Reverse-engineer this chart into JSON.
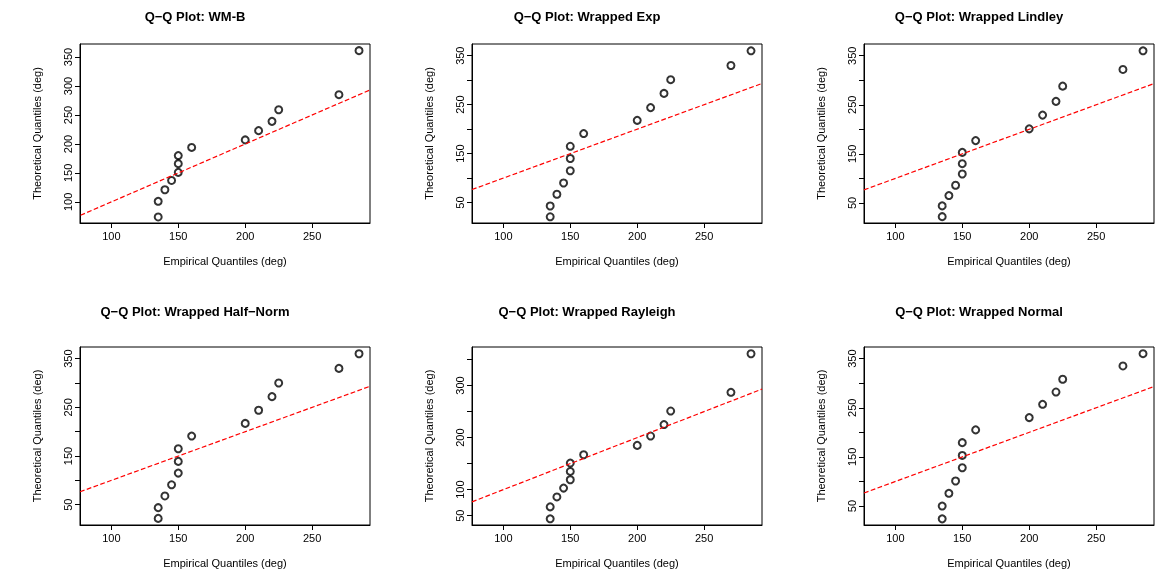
{
  "chart_data": [
    {
      "type": "scatter",
      "title": "Q−Q Plot: WM-B",
      "xlabel": "Empirical Quantiles (deg)",
      "ylabel": "Theoretical Quantiles (deg)",
      "marker": "circle",
      "grid": false,
      "xlim": [
        76.6,
        293.2
      ],
      "ylim": [
        63.6,
        372.5
      ],
      "xticks": [
        100,
        150,
        200,
        250
      ],
      "yticks": [
        100,
        150,
        200,
        250,
        300,
        350
      ],
      "x": [
        135,
        135,
        140,
        145,
        150,
        150,
        150,
        160,
        200,
        210,
        220,
        225,
        270,
        285
      ],
      "series": [
        {
          "color": "#000000",
          "values": [
            74,
            101,
            121,
            137,
            151,
            166,
            180,
            194,
            207,
            223,
            239,
            259,
            285,
            361
          ]
        },
        {
          "type": "line",
          "color": "#ff0000",
          "line_style": "dashed",
          "marker": "none",
          "x": [
            77,
            293
          ],
          "values": [
            77,
            293
          ]
        }
      ]
    },
    {
      "type": "scatter",
      "title": "Q−Q Plot: Wrapped Exp",
      "xlabel": "Empirical Quantiles (deg)",
      "ylabel": "Theoretical Quantiles (deg)",
      "marker": "circle",
      "grid": false,
      "xlim": [
        76.6,
        293.2
      ],
      "ylim": [
        8.3,
        373.9
      ],
      "xticks": [
        100,
        150,
        200,
        250
      ],
      "yticks": [
        50,
        {
          "value": 100,
          "label": null
        },
        150,
        {
          "value": 200,
          "label": null
        },
        250,
        {
          "value": 300,
          "label": null
        },
        350
      ],
      "x": [
        135,
        135,
        140,
        145,
        150,
        150,
        150,
        160,
        200,
        210,
        220,
        225,
        270,
        285
      ],
      "series": [
        {
          "color": "#000000",
          "values": [
            21,
            43,
            67,
            90,
            115,
            140,
            165,
            191,
            218,
            244,
            273,
            301,
            330,
            360
          ]
        },
        {
          "type": "line",
          "color": "#ff0000",
          "line_style": "dashed",
          "marker": "none",
          "x": [
            76.6,
            293.2
          ],
          "values": [
            76.6,
            293.2
          ]
        }
      ]
    },
    {
      "type": "scatter",
      "title": "Q−Q Plot: Wrapped Lindley",
      "xlabel": "Empirical Quantiles (deg)",
      "ylabel": "Theoretical Quantiles (deg)",
      "marker": "circle",
      "grid": false,
      "xlim": [
        76.6,
        293.2
      ],
      "ylim": [
        9.1,
        373.9
      ],
      "xticks": [
        100,
        150,
        200,
        250
      ],
      "yticks": [
        50,
        {
          "value": 100,
          "label": null
        },
        150,
        {
          "value": 200,
          "label": null
        },
        250,
        {
          "value": 300,
          "label": null
        },
        350
      ],
      "x": [
        135,
        135,
        140,
        145,
        150,
        150,
        150,
        160,
        200,
        210,
        220,
        225,
        270,
        285
      ],
      "series": [
        {
          "color": "#000000",
          "values": [
            22,
            44,
            65,
            86,
            109,
            130,
            153,
            177,
            201,
            229,
            257,
            288,
            322,
            360
          ]
        },
        {
          "type": "line",
          "color": "#ff0000",
          "line_style": "dashed",
          "marker": "none",
          "x": [
            76.6,
            293.2
          ],
          "values": [
            76.6,
            293.2
          ]
        }
      ]
    },
    {
      "type": "scatter",
      "title": "Q−Q Plot: Wrapped Half−Norm",
      "xlabel": "Empirical Quantiles (deg)",
      "ylabel": "Theoretical Quantiles (deg)",
      "marker": "circle",
      "grid": false,
      "xlim": [
        76.6,
        293.2
      ],
      "ylim": [
        8.4,
        373.9
      ],
      "xticks": [
        100,
        150,
        200,
        250
      ],
      "yticks": [
        50,
        {
          "value": 100,
          "label": null
        },
        150,
        {
          "value": 200,
          "label": null
        },
        250,
        {
          "value": 300,
          "label": null
        },
        350
      ],
      "x": [
        135,
        135,
        140,
        145,
        150,
        150,
        150,
        160,
        200,
        210,
        220,
        225,
        270,
        285
      ],
      "series": [
        {
          "color": "#000000",
          "values": [
            22,
            44,
            68,
            91,
            115,
            139,
            165,
            191,
            217,
            244,
            272,
            300,
            330,
            360
          ]
        },
        {
          "type": "line",
          "color": "#ff0000",
          "line_style": "dashed",
          "marker": "none",
          "x": [
            76.6,
            293.2
          ],
          "values": [
            76.6,
            293.2
          ]
        }
      ]
    },
    {
      "type": "scatter",
      "title": "Q−Q Plot: Wrapped Rayleigh",
      "xlabel": "Empirical Quantiles (deg)",
      "ylabel": "Theoretical Quantiles (deg)",
      "marker": "circle",
      "grid": false,
      "xlim": [
        76.6,
        293.2
      ],
      "ylim": [
        32.1,
        374
      ],
      "xticks": [
        100,
        150,
        200,
        250
      ],
      "yticks": [
        50,
        100,
        {
          "value": 150,
          "label": null
        },
        200,
        {
          "value": 250,
          "label": null
        },
        300,
        {
          "value": 350,
          "label": null
        }
      ],
      "x": [
        135,
        135,
        140,
        145,
        150,
        150,
        150,
        160,
        200,
        210,
        220,
        225,
        270,
        285
      ],
      "series": [
        {
          "color": "#000000",
          "values": [
            44,
            67,
            86,
            103,
            119,
            135,
            151,
            167,
            185,
            203,
            225,
            251,
            287,
            361
          ]
        },
        {
          "type": "line",
          "color": "#ff0000",
          "line_style": "dashed",
          "marker": "none",
          "x": [
            76.6,
            293.2
          ],
          "values": [
            76.6,
            293.2
          ]
        }
      ]
    },
    {
      "type": "scatter",
      "title": "Q−Q Plot: Wrapped Normal",
      "xlabel": "Empirical Quantiles (deg)",
      "ylabel": "Theoretical Quantiles (deg)",
      "marker": "circle",
      "grid": false,
      "xlim": [
        76.6,
        293.2
      ],
      "ylim": [
        11.5,
        373.6
      ],
      "xticks": [
        100,
        150,
        200,
        250
      ],
      "yticks": [
        50,
        {
          "value": 100,
          "label": null
        },
        150,
        {
          "value": 200,
          "label": null
        },
        250,
        {
          "value": 300,
          "label": null
        },
        350
      ],
      "x": [
        135,
        135,
        140,
        145,
        150,
        150,
        150,
        160,
        200,
        210,
        220,
        225,
        270,
        285
      ],
      "series": [
        {
          "color": "#000000",
          "values": [
            24,
            50,
            76,
            101,
            128,
            153,
            179,
            205,
            230,
            257,
            282,
            308,
            335,
            360
          ]
        },
        {
          "type": "line",
          "color": "#ff0000",
          "line_style": "dashed",
          "marker": "none",
          "x": [
            76.6,
            293.2
          ],
          "values": [
            76.6,
            293.2
          ]
        }
      ]
    }
  ]
}
